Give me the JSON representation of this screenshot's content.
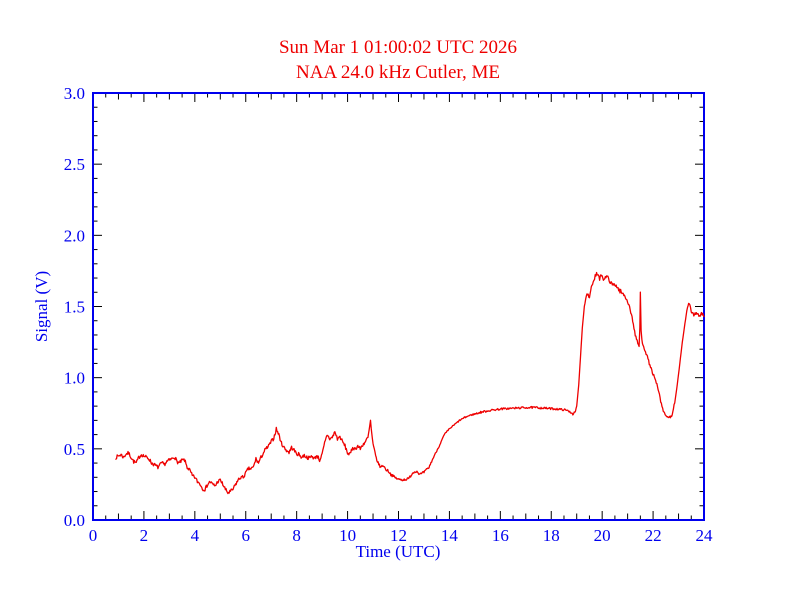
{
  "page": {
    "background": "#ffffff"
  },
  "chart_data": {
    "type": "line",
    "title": "Sun Mar 1 01:00:02 UTC 2026",
    "subtitle": "NAA 24.0 kHz Cutler, ME",
    "xlabel": "Time (UTC)",
    "ylabel": "Signal (V)",
    "xlim": [
      0,
      24
    ],
    "ylim": [
      0.0,
      3.0
    ],
    "x_tick_step": 2,
    "x_mid_tick_step": 1,
    "x_minor_tick_step": 0.5,
    "y_tick_step": 0.5,
    "y_minor_tick_step": 0.1,
    "x_tick_labels": [
      "0",
      "2",
      "4",
      "6",
      "8",
      "10",
      "12",
      "14",
      "16",
      "18",
      "20",
      "22",
      "24"
    ],
    "y_tick_labels": [
      "0.0",
      "0.5",
      "1.0",
      "1.5",
      "2.0",
      "2.5",
      "3.0"
    ],
    "grid": false,
    "legend": null,
    "colors": {
      "title": "#ee0000",
      "line": "#ee0000",
      "axis_frame": "#0000ee",
      "axis_text": "#0000ee",
      "ticks": "#000000"
    },
    "noise_seed": 7,
    "noise_regions": [
      {
        "t0": 0.0,
        "t1": 11.2,
        "amp": 0.013
      },
      {
        "t0": 11.2,
        "t1": 13.3,
        "amp": 0.009
      },
      {
        "t0": 13.3,
        "t1": 15.0,
        "amp": 0.005
      },
      {
        "t0": 15.0,
        "t1": 18.9,
        "amp": 0.007
      },
      {
        "t0": 18.9,
        "t1": 19.3,
        "amp": 0.006
      },
      {
        "t0": 19.3,
        "t1": 21.1,
        "amp": 0.016
      },
      {
        "t0": 21.1,
        "t1": 22.8,
        "amp": 0.01
      },
      {
        "t0": 22.8,
        "t1": 24.1,
        "amp": 0.013
      }
    ],
    "series": [
      {
        "name": "NAA 24.0 kHz signal",
        "points": [
          [
            0.9,
            0.44
          ],
          [
            1.0,
            0.45
          ],
          [
            1.1,
            0.46
          ],
          [
            1.2,
            0.44
          ],
          [
            1.3,
            0.465
          ],
          [
            1.4,
            0.47
          ],
          [
            1.5,
            0.44
          ],
          [
            1.6,
            0.41
          ],
          [
            1.7,
            0.4
          ],
          [
            1.8,
            0.44
          ],
          [
            1.9,
            0.46
          ],
          [
            2.0,
            0.45
          ],
          [
            2.1,
            0.44
          ],
          [
            2.2,
            0.43
          ],
          [
            2.3,
            0.4
          ],
          [
            2.4,
            0.39
          ],
          [
            2.55,
            0.37
          ],
          [
            2.7,
            0.4
          ],
          [
            2.8,
            0.39
          ],
          [
            2.9,
            0.41
          ],
          [
            3.0,
            0.42
          ],
          [
            3.1,
            0.43
          ],
          [
            3.2,
            0.445
          ],
          [
            3.3,
            0.41
          ],
          [
            3.4,
            0.4
          ],
          [
            3.5,
            0.42
          ],
          [
            3.6,
            0.42
          ],
          [
            3.7,
            0.37
          ],
          [
            3.8,
            0.35
          ],
          [
            3.9,
            0.31
          ],
          [
            4.0,
            0.3
          ],
          [
            4.1,
            0.27
          ],
          [
            4.2,
            0.255
          ],
          [
            4.3,
            0.22
          ],
          [
            4.4,
            0.215
          ],
          [
            4.5,
            0.25
          ],
          [
            4.6,
            0.27
          ],
          [
            4.7,
            0.25
          ],
          [
            4.8,
            0.24
          ],
          [
            4.9,
            0.27
          ],
          [
            5.0,
            0.28
          ],
          [
            5.1,
            0.25
          ],
          [
            5.2,
            0.215
          ],
          [
            5.3,
            0.19
          ],
          [
            5.4,
            0.2
          ],
          [
            5.5,
            0.215
          ],
          [
            5.6,
            0.25
          ],
          [
            5.7,
            0.28
          ],
          [
            5.8,
            0.3
          ],
          [
            5.9,
            0.3
          ],
          [
            6.0,
            0.33
          ],
          [
            6.1,
            0.36
          ],
          [
            6.2,
            0.36
          ],
          [
            6.3,
            0.37
          ],
          [
            6.4,
            0.43
          ],
          [
            6.5,
            0.4
          ],
          [
            6.6,
            0.44
          ],
          [
            6.75,
            0.49
          ],
          [
            6.9,
            0.52
          ],
          [
            7.0,
            0.55
          ],
          [
            7.1,
            0.575
          ],
          [
            7.2,
            0.64
          ],
          [
            7.3,
            0.6
          ],
          [
            7.4,
            0.54
          ],
          [
            7.5,
            0.51
          ],
          [
            7.6,
            0.49
          ],
          [
            7.7,
            0.475
          ],
          [
            7.8,
            0.51
          ],
          [
            7.9,
            0.49
          ],
          [
            8.0,
            0.465
          ],
          [
            8.1,
            0.46
          ],
          [
            8.2,
            0.44
          ],
          [
            8.3,
            0.455
          ],
          [
            8.4,
            0.44
          ],
          [
            8.5,
            0.435
          ],
          [
            8.6,
            0.45
          ],
          [
            8.7,
            0.43
          ],
          [
            8.8,
            0.455
          ],
          [
            8.9,
            0.42
          ],
          [
            9.0,
            0.46
          ],
          [
            9.1,
            0.54
          ],
          [
            9.2,
            0.6
          ],
          [
            9.3,
            0.57
          ],
          [
            9.4,
            0.58
          ],
          [
            9.5,
            0.62
          ],
          [
            9.6,
            0.57
          ],
          [
            9.7,
            0.585
          ],
          [
            9.8,
            0.55
          ],
          [
            9.9,
            0.52
          ],
          [
            10.0,
            0.47
          ],
          [
            10.1,
            0.46
          ],
          [
            10.2,
            0.51
          ],
          [
            10.3,
            0.5
          ],
          [
            10.4,
            0.52
          ],
          [
            10.5,
            0.5
          ],
          [
            10.6,
            0.53
          ],
          [
            10.7,
            0.55
          ],
          [
            10.8,
            0.58
          ],
          [
            10.87,
            0.66
          ],
          [
            10.9,
            0.7
          ],
          [
            10.93,
            0.64
          ],
          [
            11.0,
            0.53
          ],
          [
            11.1,
            0.45
          ],
          [
            11.2,
            0.4
          ],
          [
            11.3,
            0.37
          ],
          [
            11.4,
            0.385
          ],
          [
            11.5,
            0.355
          ],
          [
            11.6,
            0.345
          ],
          [
            11.7,
            0.32
          ],
          [
            11.85,
            0.3
          ],
          [
            12.0,
            0.285
          ],
          [
            12.2,
            0.283
          ],
          [
            12.4,
            0.29
          ],
          [
            12.55,
            0.33
          ],
          [
            12.7,
            0.345
          ],
          [
            12.85,
            0.32
          ],
          [
            13.0,
            0.335
          ],
          [
            13.2,
            0.37
          ],
          [
            13.4,
            0.45
          ],
          [
            13.6,
            0.52
          ],
          [
            13.8,
            0.6
          ],
          [
            14.0,
            0.64
          ],
          [
            14.2,
            0.67
          ],
          [
            14.4,
            0.7
          ],
          [
            14.6,
            0.72
          ],
          [
            14.8,
            0.735
          ],
          [
            15.0,
            0.745
          ],
          [
            15.3,
            0.76
          ],
          [
            15.6,
            0.77
          ],
          [
            16.0,
            0.78
          ],
          [
            16.5,
            0.785
          ],
          [
            17.0,
            0.79
          ],
          [
            17.4,
            0.79
          ],
          [
            17.8,
            0.785
          ],
          [
            18.2,
            0.78
          ],
          [
            18.5,
            0.775
          ],
          [
            18.7,
            0.765
          ],
          [
            18.85,
            0.745
          ],
          [
            18.95,
            0.76
          ],
          [
            19.0,
            0.8
          ],
          [
            19.08,
            0.95
          ],
          [
            19.15,
            1.15
          ],
          [
            19.22,
            1.35
          ],
          [
            19.3,
            1.5
          ],
          [
            19.38,
            1.58
          ],
          [
            19.45,
            1.6
          ],
          [
            19.5,
            1.56
          ],
          [
            19.55,
            1.62
          ],
          [
            19.62,
            1.66
          ],
          [
            19.7,
            1.7
          ],
          [
            19.78,
            1.73
          ],
          [
            19.85,
            1.71
          ],
          [
            19.9,
            1.69
          ],
          [
            19.95,
            1.72
          ],
          [
            20.0,
            1.7
          ],
          [
            20.05,
            1.68
          ],
          [
            20.1,
            1.71
          ],
          [
            20.15,
            1.69
          ],
          [
            20.2,
            1.72
          ],
          [
            20.25,
            1.7
          ],
          [
            20.3,
            1.67
          ],
          [
            20.4,
            1.65
          ],
          [
            20.5,
            1.66
          ],
          [
            20.6,
            1.63
          ],
          [
            20.7,
            1.61
          ],
          [
            20.8,
            1.59
          ],
          [
            20.9,
            1.57
          ],
          [
            21.0,
            1.54
          ],
          [
            21.1,
            1.48
          ],
          [
            21.2,
            1.4
          ],
          [
            21.3,
            1.3
          ],
          [
            21.4,
            1.24
          ],
          [
            21.45,
            1.22
          ],
          [
            21.48,
            1.35
          ],
          [
            21.5,
            1.6
          ],
          [
            21.53,
            1.33
          ],
          [
            21.56,
            1.26
          ],
          [
            21.65,
            1.21
          ],
          [
            21.75,
            1.16
          ],
          [
            21.85,
            1.1
          ],
          [
            21.95,
            1.05
          ],
          [
            22.05,
            1.0
          ],
          [
            22.15,
            0.95
          ],
          [
            22.25,
            0.88
          ],
          [
            22.35,
            0.79
          ],
          [
            22.45,
            0.745
          ],
          [
            22.55,
            0.725
          ],
          [
            22.65,
            0.72
          ],
          [
            22.75,
            0.74
          ],
          [
            22.85,
            0.82
          ],
          [
            22.95,
            0.95
          ],
          [
            23.05,
            1.1
          ],
          [
            23.15,
            1.25
          ],
          [
            23.25,
            1.38
          ],
          [
            23.35,
            1.5
          ],
          [
            23.42,
            1.53
          ],
          [
            23.5,
            1.47
          ],
          [
            23.6,
            1.44
          ],
          [
            23.7,
            1.46
          ],
          [
            23.8,
            1.43
          ],
          [
            23.9,
            1.45
          ],
          [
            24.0,
            1.43
          ]
        ]
      }
    ]
  }
}
